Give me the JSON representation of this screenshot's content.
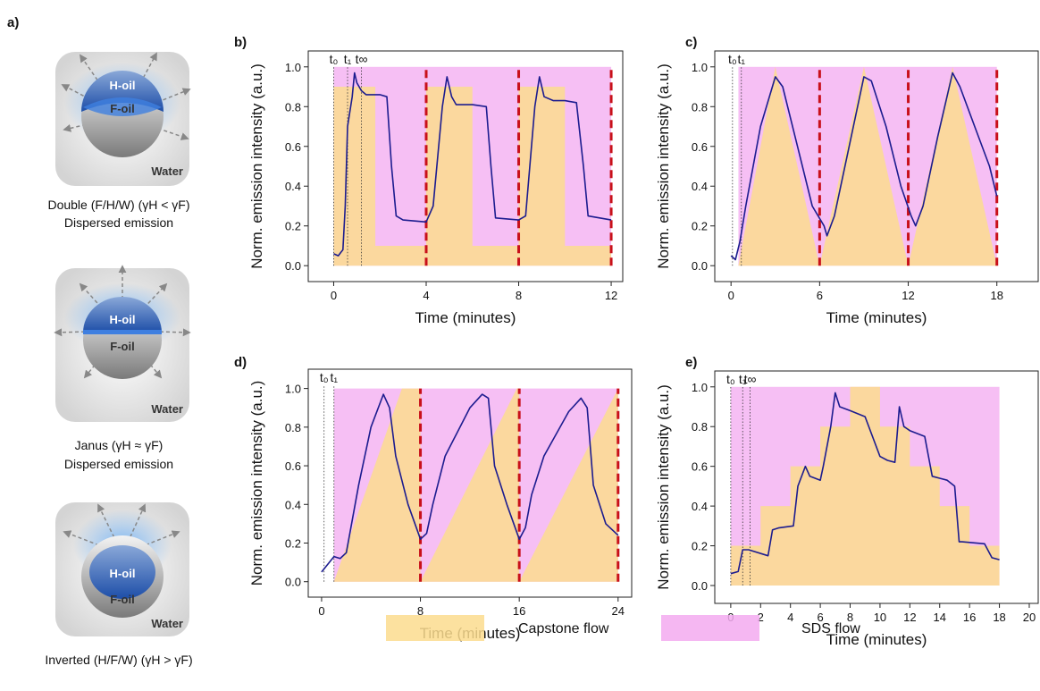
{
  "panel_a": {
    "label": "a)",
    "droplets": [
      {
        "top": "H-oil",
        "bottom": "F-oil",
        "medium": "Water",
        "caption": [
          "Double (F/H/W) (γH < γF)",
          "Dispersed emission"
        ]
      },
      {
        "top": "H-oil",
        "bottom": "F-oil",
        "medium": "Water",
        "caption": [
          "Janus (γH ≈ γF)",
          "Dispersed emission"
        ]
      },
      {
        "top": "H-oil",
        "bottom": "F-oil",
        "medium": "Water",
        "caption": [
          "Inverted (H/F/W) (γH > γF)"
        ]
      }
    ]
  },
  "legend": [
    {
      "name": "Capstone flow",
      "color": "#fbdc8e"
    },
    {
      "name": "SDS flow",
      "color": "#f3aaf0"
    }
  ],
  "chart_data": [
    {
      "type": "line",
      "label": "b)",
      "xlabel": "Time (minutes)",
      "ylabel": "Norm. emission intensity (a.u.)",
      "xlim": [
        -1.1,
        12.5
      ],
      "ylim": [
        -0.08,
        1.08
      ],
      "xticks": [
        0,
        4,
        8,
        12
      ],
      "yticks": [
        {
          "value": 0,
          "label": "0.0"
        },
        0.2,
        0.4,
        0.6,
        0.8,
        {
          "value": 1,
          "label": "1.0"
        }
      ],
      "markers": [
        {
          "x": 0,
          "label": "t₀"
        },
        {
          "x": 0.6,
          "label": "t₁"
        },
        {
          "x": 1.2,
          "label": "t∞"
        }
      ],
      "dividers": [
        4,
        8,
        12
      ],
      "capstone_x": [
        0,
        1.8,
        1.8,
        4,
        4,
        6,
        6,
        8,
        8,
        10,
        10,
        12
      ],
      "capstone_values": [
        0.9,
        0.9,
        0.1,
        0.1,
        0.9,
        0.9,
        0.1,
        0.1,
        0.9,
        0.9,
        0.1,
        0.1
      ],
      "series": [
        {
          "color": "#1c1c8f",
          "x": [
            0,
            0.2,
            0.4,
            0.5,
            0.6,
            0.8,
            0.9,
            1.0,
            1.2,
            1.4,
            2.0,
            2.3,
            2.5,
            2.7,
            3.0,
            4.0,
            4.3,
            4.7,
            4.9,
            5.1,
            5.3,
            6.0,
            6.6,
            6.8,
            7.0,
            8.0,
            8.3,
            8.7,
            8.9,
            9.1,
            9.5,
            10.0,
            10.5,
            10.8,
            11.0,
            12.0
          ],
          "values": [
            0.06,
            0.05,
            0.08,
            0.3,
            0.7,
            0.85,
            0.97,
            0.92,
            0.88,
            0.86,
            0.86,
            0.85,
            0.5,
            0.25,
            0.23,
            0.22,
            0.3,
            0.8,
            0.95,
            0.85,
            0.81,
            0.81,
            0.8,
            0.5,
            0.24,
            0.23,
            0.25,
            0.8,
            0.95,
            0.85,
            0.83,
            0.83,
            0.82,
            0.5,
            0.25,
            0.23
          ]
        }
      ]
    },
    {
      "type": "line",
      "label": "c)",
      "xlabel": "Time (minutes)",
      "ylabel": "Norm. emission intensity (a.u.)",
      "xlim": [
        -1.1,
        20.8
      ],
      "ylim": [
        -0.08,
        1.08
      ],
      "xticks": [
        0,
        6,
        12,
        18
      ],
      "yticks": [
        {
          "value": 0,
          "label": "0.0"
        },
        0.2,
        0.4,
        0.6,
        0.8,
        {
          "value": 1,
          "label": "1.0"
        }
      ],
      "markers": [
        {
          "x": 0.1,
          "label": "t₀"
        },
        {
          "x": 0.7,
          "label": "t₁"
        }
      ],
      "dividers": [
        6,
        12,
        18
      ],
      "capstone_x": [
        0.5,
        3,
        6,
        9,
        12,
        15,
        18
      ],
      "capstone_values": [
        0,
        1,
        0,
        1,
        0,
        1,
        0
      ],
      "series": [
        {
          "color": "#1c1c8f",
          "x": [
            0,
            0.3,
            0.6,
            1,
            2,
            3,
            3.5,
            4.5,
            5.5,
            6.3,
            6.5,
            7,
            8,
            9,
            9.5,
            10.5,
            11.5,
            12.2,
            12.5,
            13,
            14,
            15,
            15.5,
            16.5,
            17.5,
            18
          ],
          "values": [
            0.05,
            0.03,
            0.12,
            0.3,
            0.7,
            0.95,
            0.9,
            0.6,
            0.3,
            0.2,
            0.15,
            0.25,
            0.6,
            0.95,
            0.93,
            0.7,
            0.4,
            0.25,
            0.2,
            0.3,
            0.65,
            0.97,
            0.9,
            0.7,
            0.5,
            0.35
          ]
        }
      ]
    },
    {
      "type": "line",
      "label": "d)",
      "xlabel": "Time (minutes)",
      "ylabel": "Norm. emission intensity (a.u.)",
      "xlim": [
        -1.08,
        25.1
      ],
      "ylim": [
        -0.08,
        1.1
      ],
      "xticks": [
        0,
        8,
        16,
        24
      ],
      "yticks": [
        {
          "value": 0,
          "label": "0.0"
        },
        0.2,
        0.4,
        0.6,
        0.8,
        {
          "value": 1,
          "label": "1.0"
        }
      ],
      "markers": [
        {
          "x": 0.2,
          "label": "t₀"
        },
        {
          "x": 1.0,
          "label": "t₁"
        }
      ],
      "dividers": [
        8,
        16,
        24
      ],
      "capstone_x": [
        1,
        6.5,
        8,
        8,
        15.8,
        16,
        16,
        24
      ],
      "capstone_values": [
        0,
        1,
        1,
        0,
        1,
        1,
        0,
        1
      ],
      "series": [
        {
          "color": "#1c1c8f",
          "x": [
            0,
            1,
            1.5,
            2,
            3,
            4,
            5,
            5.5,
            6,
            7,
            8,
            8.5,
            9,
            10,
            12,
            13,
            13.5,
            14,
            15,
            16,
            16.5,
            17,
            18,
            20,
            21,
            21.5,
            22,
            23,
            24
          ],
          "values": [
            0.05,
            0.13,
            0.12,
            0.15,
            0.5,
            0.8,
            0.97,
            0.9,
            0.65,
            0.4,
            0.22,
            0.25,
            0.4,
            0.65,
            0.9,
            0.97,
            0.95,
            0.6,
            0.4,
            0.22,
            0.28,
            0.45,
            0.65,
            0.88,
            0.95,
            0.9,
            0.5,
            0.3,
            0.24
          ]
        }
      ]
    },
    {
      "type": "line",
      "label": "e)",
      "xlabel": "Time (minutes)",
      "ylabel": "Norm. emission intensity (a.u.)",
      "xlim": [
        -1.07,
        20.6
      ],
      "ylim": [
        -0.09,
        1.08
      ],
      "xticks": [
        0,
        2,
        4,
        6,
        8,
        10,
        12,
        14,
        16,
        18,
        20
      ],
      "yticks": [
        {
          "value": 0,
          "label": "0.0"
        },
        0.2,
        0.4,
        0.6,
        0.8,
        {
          "value": 1,
          "label": "1.0"
        }
      ],
      "markers": [
        {
          "x": 0,
          "label": "t₀"
        },
        {
          "x": 0.8,
          "label": "t₁"
        },
        {
          "x": 1.3,
          "label": "t∞"
        }
      ],
      "dividers": [],
      "capstone_x": [
        0,
        2,
        2,
        4,
        4,
        6,
        6,
        8,
        8,
        10,
        10,
        12,
        12,
        14,
        14,
        16,
        16,
        18
      ],
      "capstone_values": [
        0.2,
        0.2,
        0.4,
        0.4,
        0.6,
        0.6,
        0.8,
        0.8,
        1,
        1,
        0.8,
        0.8,
        0.6,
        0.6,
        0.4,
        0.4,
        0.2,
        0.2
      ],
      "series": [
        {
          "color": "#1c1c8f",
          "x": [
            0,
            0.5,
            0.8,
            1.2,
            2.5,
            2.8,
            3.2,
            4.2,
            4.5,
            5,
            5.3,
            6,
            6.2,
            6.7,
            7,
            7.3,
            8,
            9,
            10,
            10.5,
            11,
            11.3,
            11.6,
            12,
            13,
            13.5,
            14,
            14.5,
            15,
            15.3,
            15.5,
            17,
            17.5,
            18
          ],
          "values": [
            0.06,
            0.07,
            0.18,
            0.18,
            0.15,
            0.28,
            0.29,
            0.3,
            0.5,
            0.6,
            0.55,
            0.53,
            0.6,
            0.8,
            0.97,
            0.9,
            0.88,
            0.85,
            0.65,
            0.63,
            0.62,
            0.9,
            0.8,
            0.78,
            0.75,
            0.55,
            0.54,
            0.53,
            0.5,
            0.22,
            0.22,
            0.21,
            0.14,
            0.13
          ]
        }
      ]
    }
  ]
}
